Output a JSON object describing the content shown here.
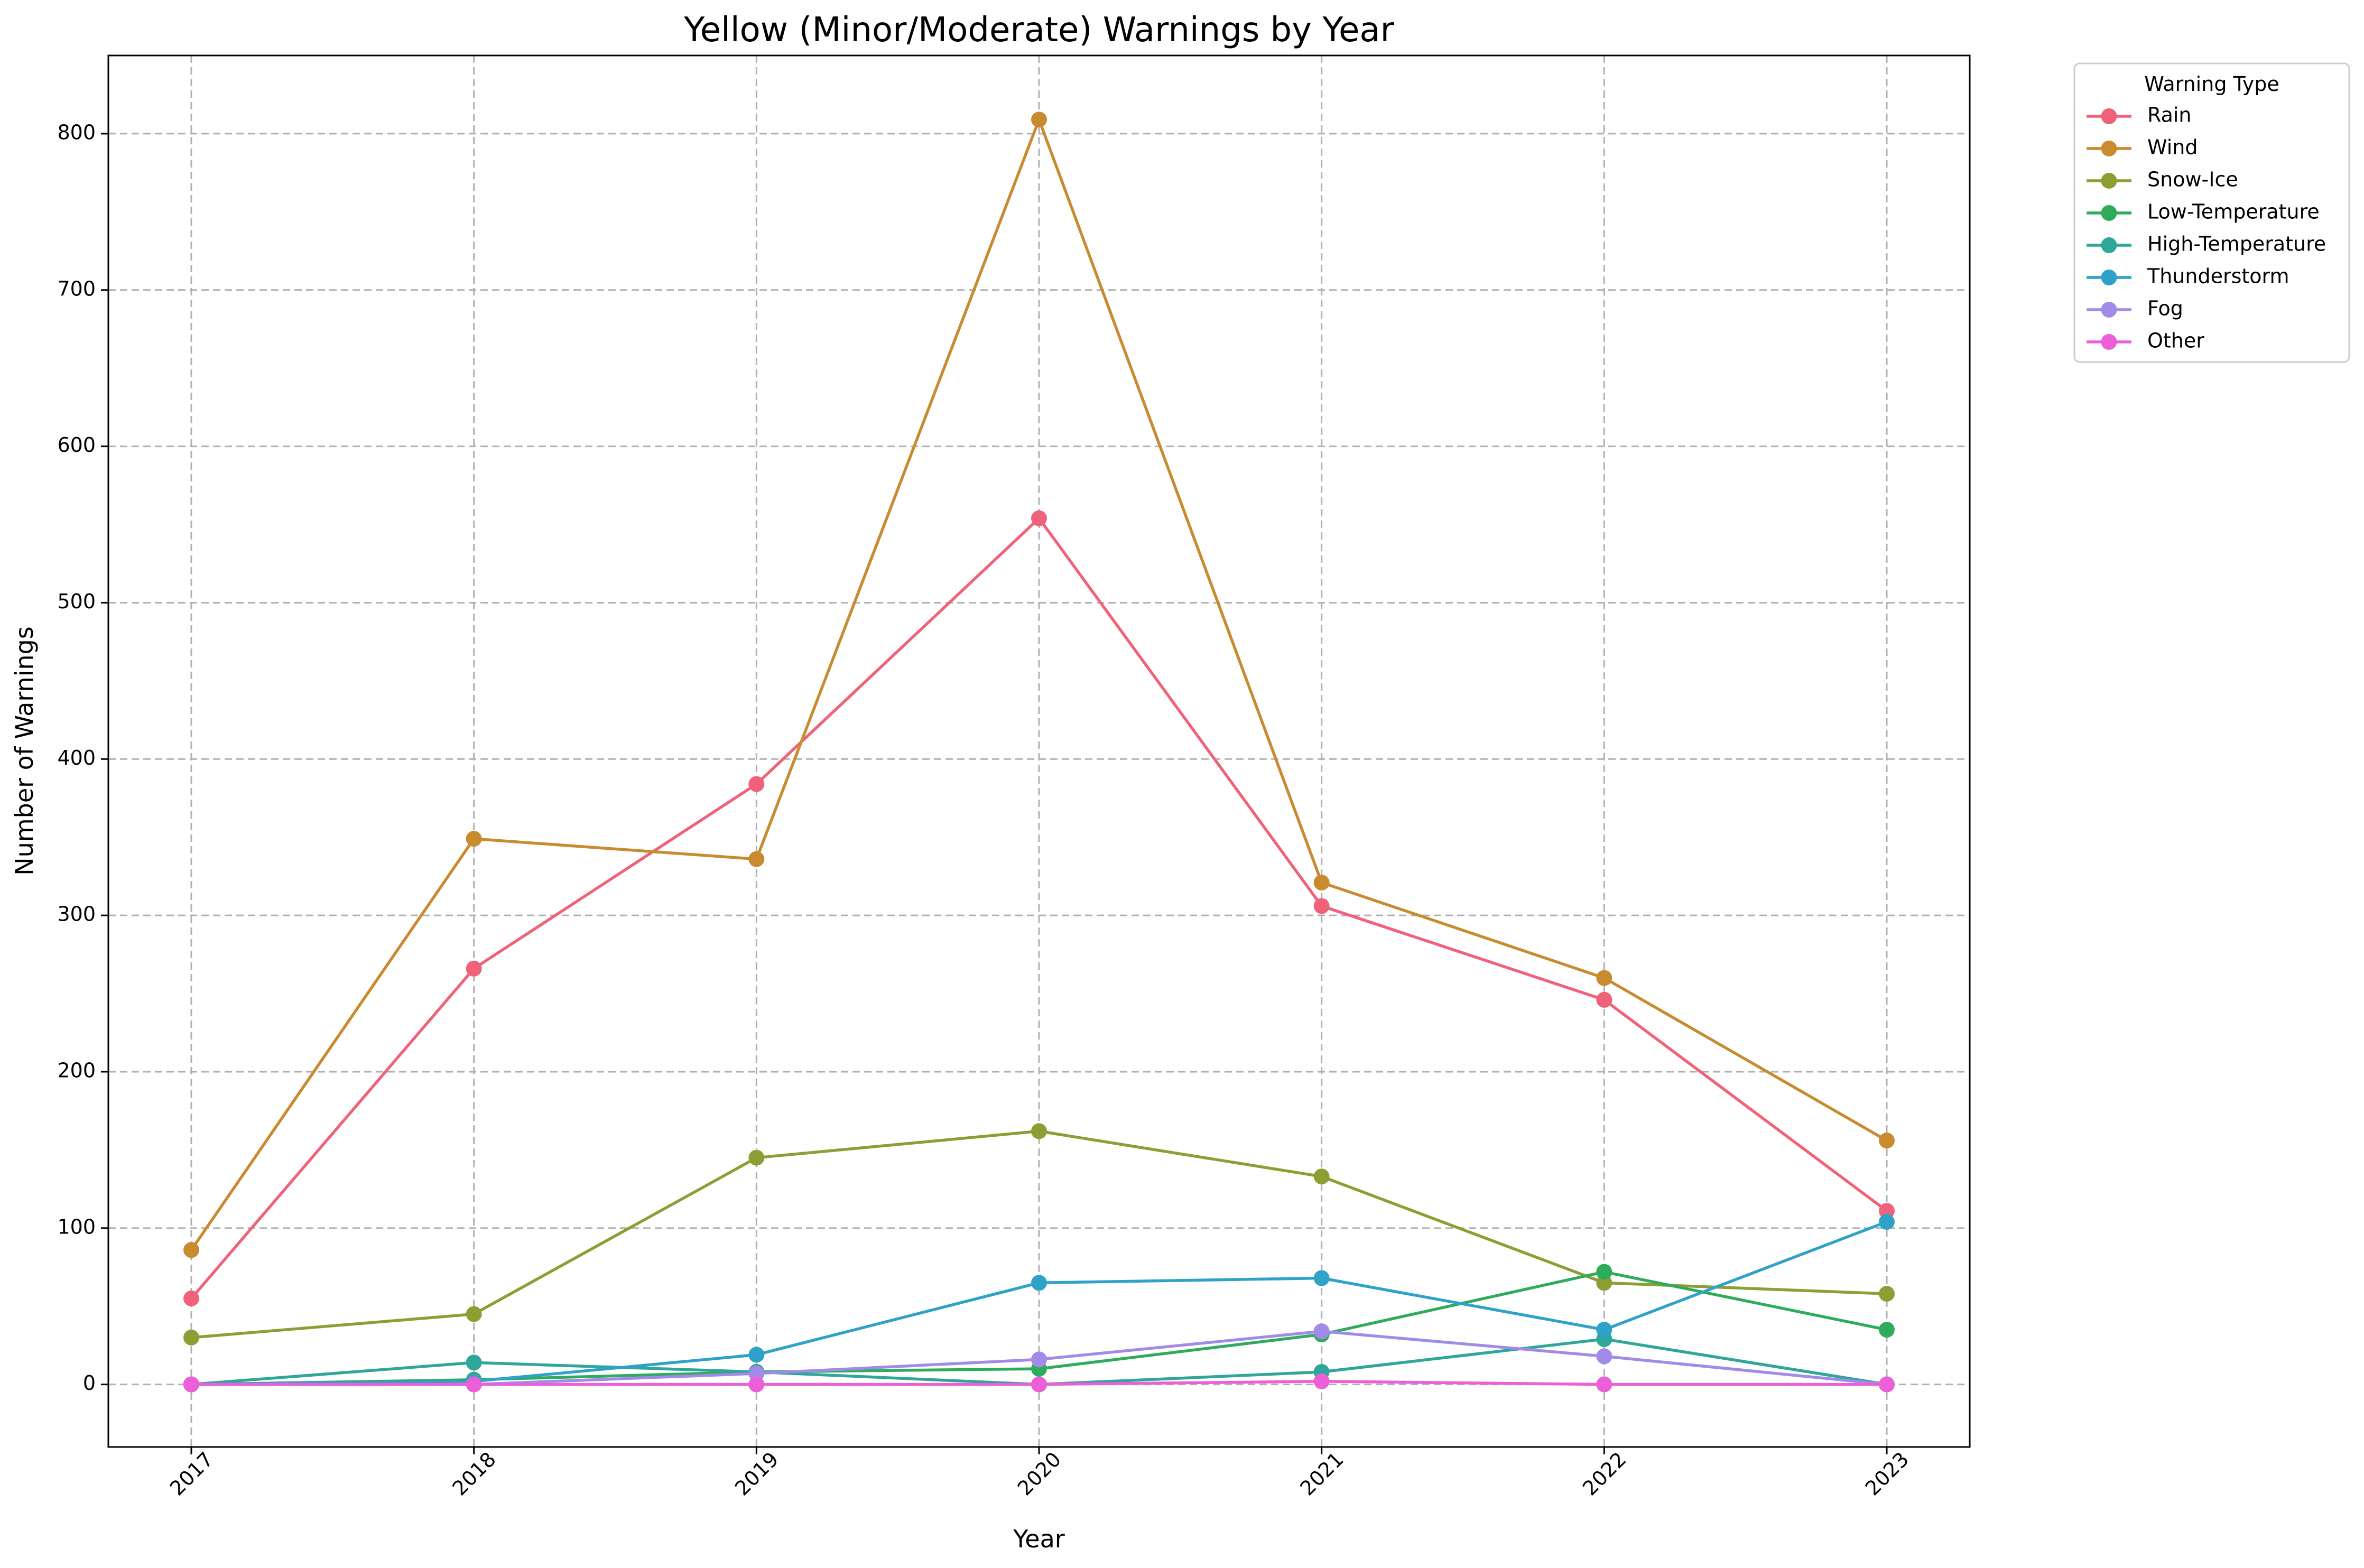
{
  "chart_data": {
    "type": "line",
    "title": "Yellow (Minor/Moderate) Warnings by Year",
    "xlabel": "Year",
    "ylabel": "Number of Warnings",
    "x": [
      "2017",
      "2018",
      "2019",
      "2020",
      "2021",
      "2022",
      "2023"
    ],
    "ylim": [
      -40,
      850
    ],
    "yticks": [
      0,
      100,
      200,
      300,
      400,
      500,
      600,
      700,
      800
    ],
    "grid": true,
    "legend_title": "Warning Type",
    "legend_position": "outside-top-right",
    "series": [
      {
        "name": "Rain",
        "color": "#f0627a",
        "values": [
          55,
          266,
          384,
          554,
          306,
          246,
          111
        ]
      },
      {
        "name": "Wind",
        "color": "#c88b2f",
        "values": [
          86,
          349,
          336,
          809,
          321,
          260,
          156
        ]
      },
      {
        "name": "Snow-Ice",
        "color": "#8e9e32",
        "values": [
          30,
          45,
          145,
          162,
          133,
          65,
          58
        ]
      },
      {
        "name": "Low-Temperature",
        "color": "#2fab5c",
        "values": [
          0,
          3,
          8,
          10,
          32,
          72,
          35
        ]
      },
      {
        "name": "High-Temperature",
        "color": "#2fa69a",
        "values": [
          0,
          14,
          8,
          0,
          8,
          29,
          0
        ]
      },
      {
        "name": "Thunderstorm",
        "color": "#2ea2c9",
        "values": [
          0,
          2,
          19,
          65,
          68,
          35,
          104
        ]
      },
      {
        "name": "Fog",
        "color": "#a28be8",
        "values": [
          0,
          0,
          7,
          16,
          34,
          18,
          0
        ]
      },
      {
        "name": "Other",
        "color": "#ec5fd8",
        "values": [
          0,
          0,
          0,
          0,
          2,
          0,
          0
        ]
      }
    ]
  }
}
